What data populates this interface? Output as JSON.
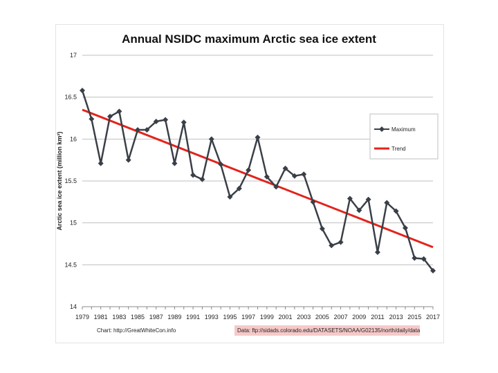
{
  "chart_data": {
    "type": "line",
    "title": "Annual NSIDC maximum Arctic sea ice extent",
    "xlabel": "",
    "ylabel": "Arctic sea ice extent (million km²)",
    "ylim": [
      14,
      17
    ],
    "yticks": [
      "14",
      "14.5",
      "15",
      "15.5",
      "16",
      "16.5",
      "17"
    ],
    "xticks": [
      "1979",
      "1981",
      "1983",
      "1985",
      "1987",
      "1989",
      "1991",
      "1993",
      "1995",
      "1997",
      "1999",
      "2001",
      "2003",
      "2005",
      "2007",
      "2009",
      "2011",
      "2013",
      "2015",
      "2017"
    ],
    "x": [
      1979,
      1980,
      1981,
      1982,
      1983,
      1984,
      1985,
      1986,
      1987,
      1988,
      1989,
      1990,
      1991,
      1992,
      1993,
      1994,
      1995,
      1996,
      1997,
      1998,
      1999,
      2000,
      2001,
      2002,
      2003,
      2004,
      2005,
      2006,
      2007,
      2008,
      2009,
      2010,
      2011,
      2012,
      2013,
      2014,
      2015,
      2016,
      2017
    ],
    "series": [
      {
        "name": "Maximum",
        "color": "#3a3f47",
        "marker": "diamond",
        "values": [
          16.58,
          16.24,
          15.71,
          16.27,
          16.33,
          15.75,
          16.11,
          16.11,
          16.21,
          16.23,
          15.71,
          16.2,
          15.57,
          15.52,
          16.0,
          15.7,
          15.31,
          15.41,
          15.63,
          16.02,
          15.55,
          15.43,
          15.65,
          15.56,
          15.58,
          15.25,
          14.93,
          14.73,
          14.77,
          15.29,
          15.15,
          15.28,
          14.65,
          15.24,
          15.14,
          14.94,
          14.58,
          14.57,
          14.43
        ]
      },
      {
        "name": "Trend",
        "color": "#e3231b",
        "values_start_end": [
          16.35,
          14.71
        ]
      }
    ],
    "legend_position": "right",
    "grid": true
  },
  "credits": {
    "left": "Chart: http://GreatWhiteCon.info",
    "right": "Data: ftp://sidads.colorado.edu/DATASETS/NOAA/G02135/north/daily/data"
  }
}
